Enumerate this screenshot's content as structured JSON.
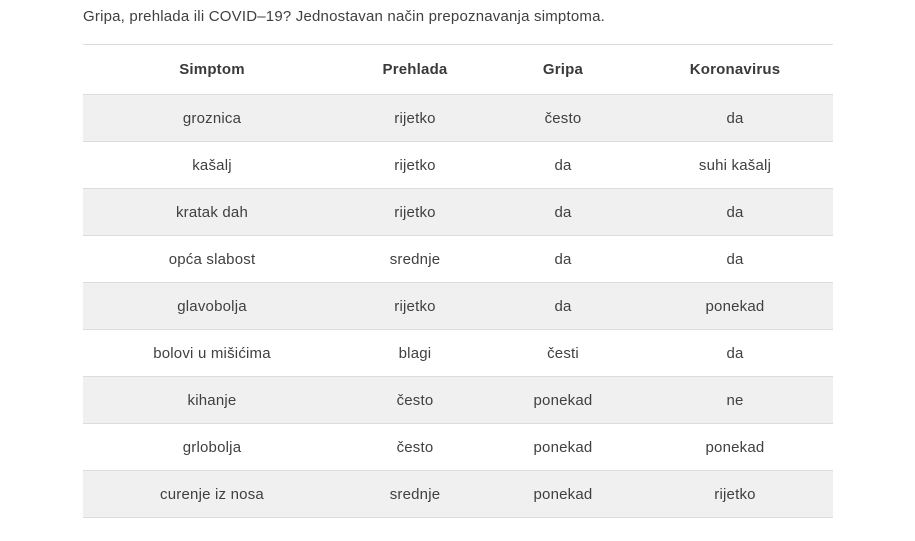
{
  "page": {
    "title": "Gripa, prehlada ili COVID–19? Jednostavan način prepoznavanja simptoma."
  },
  "colors": {
    "stripe_bg": "#f0f0f0",
    "row_border": "#dcdcdc",
    "heading_text": "#3a3a3a",
    "body_text": "#404040"
  },
  "table": {
    "headers": [
      "Simptom",
      "Prehlada",
      "Gripa",
      "Koronavirus"
    ],
    "rows": [
      [
        "groznica",
        "rijetko",
        "često",
        "da"
      ],
      [
        "kašalj",
        "rijetko",
        "da",
        "suhi kašalj"
      ],
      [
        "kratak dah",
        "rijetko",
        "da",
        "da"
      ],
      [
        "opća slabost",
        "srednje",
        "da",
        "da"
      ],
      [
        "glavobolja",
        "rijetko",
        "da",
        "ponekad"
      ],
      [
        "bolovi u mišićima",
        "blagi",
        "česti",
        "da"
      ],
      [
        "kihanje",
        "često",
        "ponekad",
        "ne"
      ],
      [
        "grlobolja",
        "često",
        "ponekad",
        "ponekad"
      ],
      [
        "curenje iz nosa",
        "srednje",
        "ponekad",
        "rijetko"
      ]
    ]
  }
}
